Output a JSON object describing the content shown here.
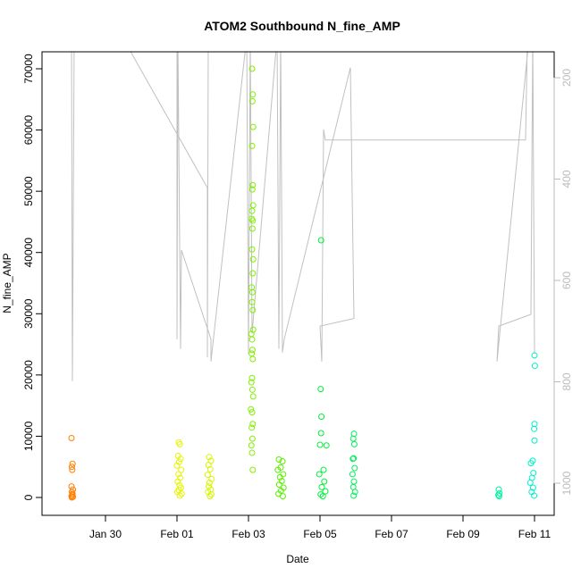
{
  "chart_data": {
    "type": "scatter",
    "title": "ATOM2 Southbound N_fine_AMP",
    "xlabel": "Date",
    "ylabel": "N_fine_AMP",
    "xlim": [
      28.225,
      42.55
    ],
    "ylim": [
      -2917,
      72771
    ],
    "y2lim": [
      1063.4,
      148.9
    ],
    "xticks": [
      {
        "value": 30,
        "label": "Jan 30"
      },
      {
        "value": 32,
        "label": "Feb 01"
      },
      {
        "value": 34,
        "label": "Feb 03"
      },
      {
        "value": 36,
        "label": "Feb 05"
      },
      {
        "value": 38,
        "label": "Feb 07"
      },
      {
        "value": 40,
        "label": "Feb 09"
      },
      {
        "value": 42,
        "label": "Feb 11"
      }
    ],
    "yticks": [
      0,
      10000,
      20000,
      30000,
      40000,
      50000,
      60000,
      70000
    ],
    "y2ticks": [
      200,
      400,
      600,
      800,
      1000
    ],
    "series": [
      {
        "color": "#ff8000",
        "x": [
          29.05,
          29.08,
          29.06,
          29.07,
          29.05,
          29.09,
          29.06,
          29.08,
          29.07,
          29.05,
          29.09,
          29.06
        ],
        "values": [
          9700,
          5500,
          5000,
          4500,
          1800,
          1300,
          900,
          600,
          400,
          200,
          100,
          0
        ]
      },
      {
        "color": "#e6f500",
        "x": [
          32.05,
          32.08,
          32.03,
          32.1,
          32.06,
          32.0,
          32.12,
          32.04,
          32.09,
          32.02,
          32.07,
          32.11,
          32.05,
          32.01,
          32.13,
          32.08
        ],
        "values": [
          9000,
          8700,
          6800,
          6300,
          5800,
          5200,
          4500,
          3800,
          3200,
          2600,
          2000,
          1600,
          1200,
          900,
          600,
          300
        ]
      },
      {
        "color": "#d8f500",
        "x": [
          32.9,
          32.95,
          32.88,
          32.93,
          32.86,
          32.97,
          32.91,
          32.89,
          32.94,
          32.87,
          32.96,
          32.92
        ],
        "values": [
          6600,
          6000,
          5300,
          4600,
          3700,
          3000,
          2400,
          1800,
          1300,
          900,
          500,
          200
        ]
      },
      {
        "color": "#80f000",
        "x": [
          34.1,
          34.12,
          34.11,
          34.13,
          34.1,
          34.12,
          34.11,
          34.13,
          34.1,
          34.09,
          34.12,
          34.11,
          34.1,
          34.13,
          34.12,
          34.09,
          34.11,
          34.1,
          34.12,
          34.13,
          34.08,
          34.1,
          34.11,
          34.09,
          34.12,
          34.1,
          34.08,
          34.11,
          34.13,
          34.07,
          34.1,
          34.12,
          34.09,
          34.11,
          34.08,
          34.1,
          34.12
        ],
        "values": [
          70000,
          65800,
          64700,
          60500,
          57400,
          51000,
          50300,
          47700,
          46800,
          45500,
          45200,
          43900,
          40500,
          38900,
          36600,
          34300,
          33500,
          31900,
          30600,
          27400,
          26700,
          25800,
          24100,
          23500,
          22600,
          19500,
          18800,
          17600,
          16500,
          14400,
          13900,
          12000,
          11400,
          9600,
          8500,
          7300,
          4500
        ]
      },
      {
        "color": "#5af000",
        "x": [
          34.85,
          34.95,
          34.9,
          34.82,
          34.97,
          34.88,
          34.93,
          34.86,
          34.98,
          34.91,
          34.84,
          34.96
        ],
        "values": [
          6200,
          5900,
          4900,
          4500,
          3800,
          3300,
          2700,
          2100,
          1600,
          1100,
          600,
          200
        ]
      },
      {
        "color": "#00f03c",
        "x": [
          36.03,
          36.02,
          36.04,
          36.03,
          36.0,
          36.18,
          36.1,
          35.98,
          36.12,
          36.05,
          36.15,
          36.02,
          36.08
        ],
        "values": [
          42000,
          17700,
          13200,
          10500,
          8600,
          8500,
          4500,
          3800,
          2600,
          1700,
          1000,
          500,
          200
        ]
      },
      {
        "color": "#00f05a",
        "x": [
          36.95,
          36.93,
          36.96,
          36.94,
          36.92,
          36.97,
          36.91,
          36.95,
          36.93,
          36.98,
          36.94
        ],
        "values": [
          10400,
          9600,
          8700,
          6400,
          6300,
          4800,
          3800,
          2600,
          1700,
          900,
          300
        ]
      },
      {
        "color": "#00f0a0",
        "x": [
          41.0,
          41.02,
          40.99,
          41.01
        ],
        "values": [
          1300,
          700,
          400,
          200
        ]
      },
      {
        "color": "#00f0c8",
        "x": [
          42.0,
          42.01,
          42.0,
          41.99,
          42.0,
          41.95,
          41.9,
          41.97,
          41.93,
          41.88,
          41.96,
          41.92,
          41.99
        ],
        "values": [
          23200,
          21500,
          12000,
          11200,
          9300,
          6000,
          5600,
          4000,
          3200,
          2400,
          1600,
          900,
          300
        ]
      },
      {
        "type": "line",
        "axis": "y2",
        "color": "#c0c0c0",
        "x": [
          29.05,
          29.075,
          29.125,
          30.475,
          32.85,
          32.85,
          32.875,
          32.0,
          32.0,
          32.025,
          32.1,
          32.125,
          32.95,
          32.95,
          33.95,
          34.0,
          34.05,
          34.1,
          34.8,
          34.85,
          34.9,
          34.95,
          35.0,
          36.85,
          36.95,
          36.0,
          36.05,
          36.1,
          36.15,
          41.75,
          41.8,
          41.85,
          40.95,
          41.0,
          41.9,
          41.95,
          42.0
        ],
        "values": [
          120,
          799,
          120,
          120,
          417,
          752,
          120,
          120,
          716,
          120,
          735,
          540,
          716,
          760,
          120,
          745,
          120,
          705,
          120,
          735,
          120,
          742,
          716,
          180,
          675,
          690,
          760,
          302,
          323,
          323,
          120,
          120,
          760,
          690,
          667,
          120,
          745
        ]
      }
    ]
  }
}
